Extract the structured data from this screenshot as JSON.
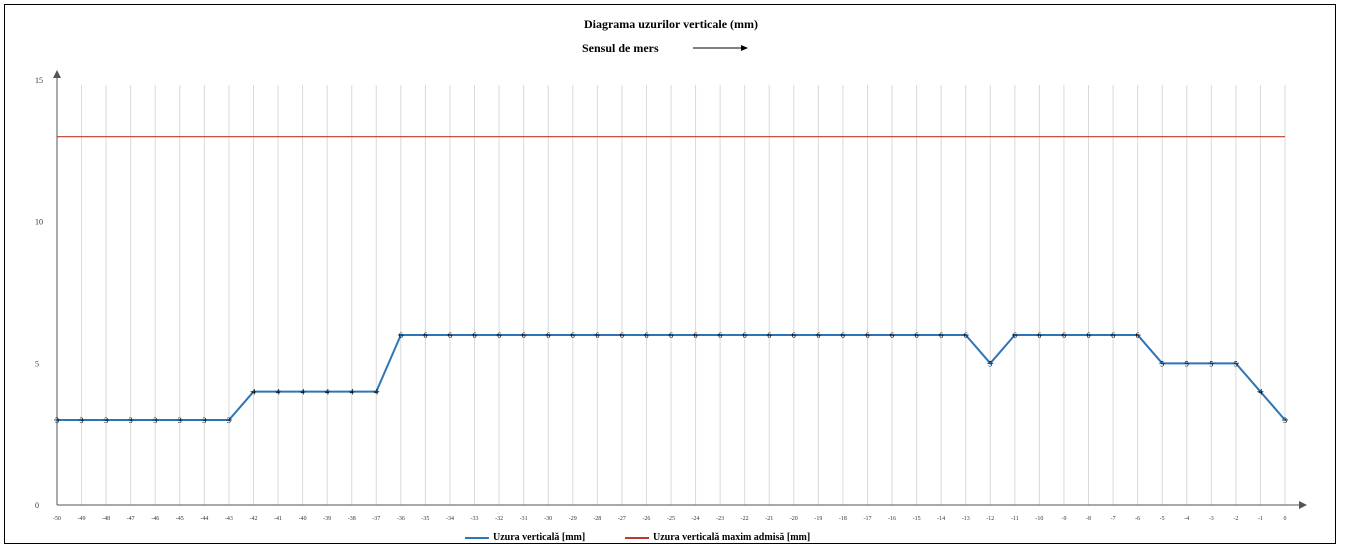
{
  "chart_data": {
    "type": "line",
    "title": "Diagrama  uzurilor verticale (mm)",
    "subtitle": "Sensul de mers",
    "xlabel": "",
    "ylabel": "",
    "ylim": [
      0,
      15
    ],
    "yticks": [
      "0",
      "5",
      "10",
      "15"
    ],
    "grid": "vertical",
    "legend_position": "bottom",
    "categories": [
      "-50",
      "-49",
      "-48",
      "-47",
      "-46",
      "-45",
      "-44",
      "-43",
      "-42",
      "-41",
      "-40",
      "-39",
      "-38",
      "-37",
      "-36",
      "-35",
      "-34",
      "-33",
      "-32",
      "-31",
      "-30",
      "-29",
      "-28",
      "-27",
      "-26",
      "-25",
      "-24",
      "-23",
      "-22",
      "-21",
      "-20",
      "-19",
      "-18",
      "-17",
      "-16",
      "-15",
      "-14",
      "-13",
      "-12",
      "-11",
      "-10",
      "-9",
      "-8",
      "-7",
      "-6",
      "-5",
      "-4",
      "-3",
      "-2",
      "-1",
      "0"
    ],
    "series": [
      {
        "name": "Uzura verticală [mm]",
        "color": "#2e75b6",
        "values": [
          3,
          3,
          3,
          3,
          3,
          3,
          3,
          3,
          4,
          4,
          4,
          4,
          4,
          4,
          6,
          6,
          6,
          6,
          6,
          6,
          6,
          6,
          6,
          6,
          6,
          6,
          6,
          6,
          6,
          6,
          6,
          6,
          6,
          6,
          6,
          6,
          6,
          6,
          5,
          6,
          6,
          6,
          6,
          6,
          6,
          5,
          5,
          5,
          5,
          4,
          3
        ]
      },
      {
        "name": "Uzura verticală maxim admisă [mm]",
        "color": "#c0392b",
        "values": [
          13,
          13,
          13,
          13,
          13,
          13,
          13,
          13,
          13,
          13,
          13,
          13,
          13,
          13,
          13,
          13,
          13,
          13,
          13,
          13,
          13,
          13,
          13,
          13,
          13,
          13,
          13,
          13,
          13,
          13,
          13,
          13,
          13,
          13,
          13,
          13,
          13,
          13,
          13,
          13,
          13,
          13,
          13,
          13,
          13,
          13,
          13,
          13,
          13,
          13,
          13
        ]
      }
    ]
  }
}
